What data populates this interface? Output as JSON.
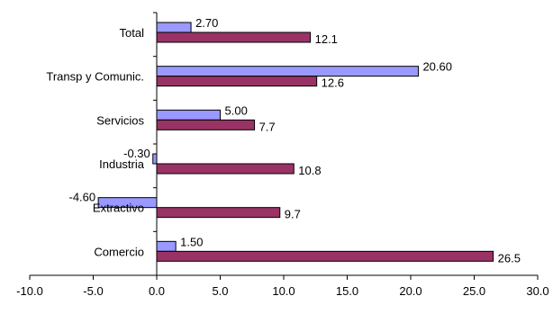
{
  "chart_data": {
    "type": "bar",
    "orientation": "horizontal",
    "categories": [
      "Total",
      "Transp y Comunic.",
      "Servicios",
      "Industria",
      "Extractivo",
      "Comercio"
    ],
    "series": [
      {
        "values": [
          2.7,
          20.6,
          5.0,
          -0.3,
          -4.6,
          1.5
        ],
        "labels": [
          "2.70",
          "20.60",
          "5.00",
          "-0.30",
          "-4.60",
          "1.50"
        ],
        "color": "#9999ff"
      },
      {
        "values": [
          12.1,
          12.6,
          7.7,
          10.8,
          9.7,
          26.5
        ],
        "labels": [
          "12.1",
          "12.6",
          "7.7",
          "10.8",
          "9.7",
          "26.5"
        ],
        "color": "#993366"
      }
    ],
    "xlim": [
      -10,
      30
    ],
    "xticks": [
      "-10.0",
      "-5.0",
      "0.0",
      "5.0",
      "10.0",
      "15.0",
      "20.0",
      "25.0",
      "30.0"
    ],
    "grid": false,
    "legend": "none"
  }
}
